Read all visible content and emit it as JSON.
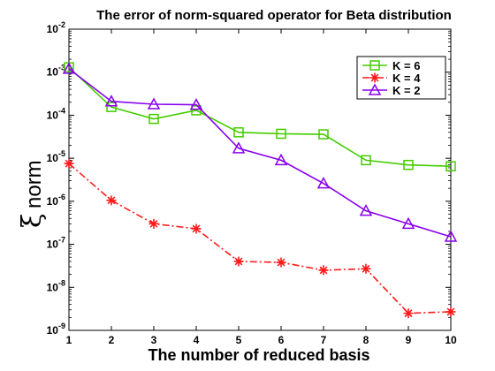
{
  "chart_data": {
    "type": "line",
    "title": "The error of norm-squared operator for Beta distribution",
    "xlabel": "The number of reduced basis",
    "ylabel_symbol": "ξ",
    "ylabel_sub": "norm",
    "x": [
      1,
      2,
      3,
      4,
      5,
      6,
      7,
      8,
      9,
      10
    ],
    "xlim": [
      1,
      10
    ],
    "ylim": [
      1e-09,
      0.01
    ],
    "yscale": "log",
    "ytick_base": "10",
    "ytick_exponents": [
      "-9",
      "-8",
      "-7",
      "-6",
      "-5",
      "-4",
      "-3",
      "-2"
    ],
    "legend_position": "top-right",
    "series": [
      {
        "name": "K = 6",
        "color": "#44cc00",
        "marker": "square",
        "linestyle": "solid",
        "values": [
          0.0013,
          0.000155,
          8.2e-05,
          0.00013,
          4e-05,
          3.7e-05,
          3.6e-05,
          9e-06,
          7e-06,
          6.5e-06
        ]
      },
      {
        "name": "K = 4",
        "color": "#ff1a1a",
        "marker": "asterisk",
        "linestyle": "dashdot",
        "values": [
          7.5e-06,
          1.05e-06,
          3e-07,
          2.3e-07,
          4e-08,
          3.8e-08,
          2.5e-08,
          2.7e-08,
          2.5e-09,
          2.7e-09
        ]
      },
      {
        "name": "K = 2",
        "color": "#8800ee",
        "marker": "triangle",
        "linestyle": "solid",
        "values": [
          0.0012,
          0.00021,
          0.00018,
          0.000175,
          1.7e-05,
          9e-06,
          2.6e-06,
          6e-07,
          3e-07,
          1.5e-07
        ]
      }
    ]
  }
}
